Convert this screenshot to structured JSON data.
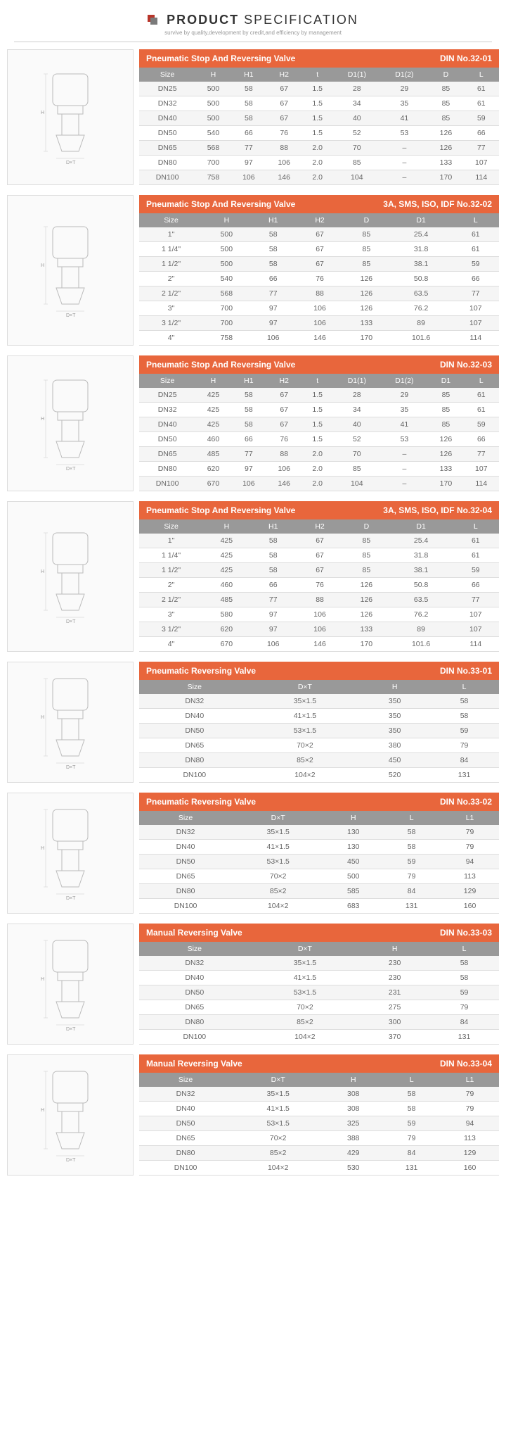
{
  "header": {
    "word1": "PRODUCT",
    "word2": "SPECIFICATION",
    "subtitle": "survive by quality,development by credit,and efficiency by management"
  },
  "colors": {
    "title_bg": "#e8663c",
    "header_row_bg": "#999999",
    "row_odd": "#f5f5f5",
    "row_even": "#ffffff",
    "border": "#dddddd"
  },
  "sections": [
    {
      "title_left": "Pneumatic Stop And Reversing Valve",
      "title_right": "DIN No.32-01",
      "columns": [
        "Size",
        "H",
        "H1",
        "H2",
        "t",
        "D1(1)",
        "D1(2)",
        "D",
        "L"
      ],
      "rows": [
        [
          "DN25",
          "500",
          "58",
          "67",
          "1.5",
          "28",
          "29",
          "85",
          "61"
        ],
        [
          "DN32",
          "500",
          "58",
          "67",
          "1.5",
          "34",
          "35",
          "85",
          "61"
        ],
        [
          "DN40",
          "500",
          "58",
          "67",
          "1.5",
          "40",
          "41",
          "85",
          "59"
        ],
        [
          "DN50",
          "540",
          "66",
          "76",
          "1.5",
          "52",
          "53",
          "126",
          "66"
        ],
        [
          "DN65",
          "568",
          "77",
          "88",
          "2.0",
          "70",
          "–",
          "126",
          "77"
        ],
        [
          "DN80",
          "700",
          "97",
          "106",
          "2.0",
          "85",
          "–",
          "133",
          "107"
        ],
        [
          "DN100",
          "758",
          "106",
          "146",
          "2.0",
          "104",
          "–",
          "170",
          "114"
        ]
      ],
      "diagram_label": "Technical\nDrawing"
    },
    {
      "title_left": "Pneumatic Stop And Reversing Valve",
      "title_right": "3A, SMS, ISO, IDF No.32-02",
      "columns": [
        "Size",
        "H",
        "H1",
        "H2",
        "D",
        "D1",
        "L"
      ],
      "rows": [
        [
          "1\"",
          "500",
          "58",
          "67",
          "85",
          "25.4",
          "61"
        ],
        [
          "1 1/4\"",
          "500",
          "58",
          "67",
          "85",
          "31.8",
          "61"
        ],
        [
          "1 1/2\"",
          "500",
          "58",
          "67",
          "85",
          "38.1",
          "59"
        ],
        [
          "2\"",
          "540",
          "66",
          "76",
          "126",
          "50.8",
          "66"
        ],
        [
          "2 1/2\"",
          "568",
          "77",
          "88",
          "126",
          "63.5",
          "77"
        ],
        [
          "3\"",
          "700",
          "97",
          "106",
          "126",
          "76.2",
          "107"
        ],
        [
          "3 1/2\"",
          "700",
          "97",
          "106",
          "133",
          "89",
          "107"
        ],
        [
          "4\"",
          "758",
          "106",
          "146",
          "170",
          "101.6",
          "114"
        ]
      ],
      "diagram_label": "Technical\nDrawing"
    },
    {
      "title_left": "Pneumatic Stop And Reversing Valve",
      "title_right": "DIN   No.32-03",
      "columns": [
        "Size",
        "H",
        "H1",
        "H2",
        "t",
        "D1(1)",
        "D1(2)",
        "D1",
        "L"
      ],
      "rows": [
        [
          "DN25",
          "425",
          "58",
          "67",
          "1.5",
          "28",
          "29",
          "85",
          "61"
        ],
        [
          "DN32",
          "425",
          "58",
          "67",
          "1.5",
          "34",
          "35",
          "85",
          "61"
        ],
        [
          "DN40",
          "425",
          "58",
          "67",
          "1.5",
          "40",
          "41",
          "85",
          "59"
        ],
        [
          "DN50",
          "460",
          "66",
          "76",
          "1.5",
          "52",
          "53",
          "126",
          "66"
        ],
        [
          "DN65",
          "485",
          "77",
          "88",
          "2.0",
          "70",
          "–",
          "126",
          "77"
        ],
        [
          "DN80",
          "620",
          "97",
          "106",
          "2.0",
          "85",
          "–",
          "133",
          "107"
        ],
        [
          "DN100",
          "670",
          "106",
          "146",
          "2.0",
          "104",
          "–",
          "170",
          "114"
        ]
      ],
      "diagram_label": "Technical\nDrawing"
    },
    {
      "title_left": "Pneumatic Stop And Reversing Valve",
      "title_right": "3A, SMS, ISO, IDF   No.32-04",
      "columns": [
        "Size",
        "H",
        "H1",
        "H2",
        "D",
        "D1",
        "L"
      ],
      "rows": [
        [
          "1\"",
          "425",
          "58",
          "67",
          "85",
          "25.4",
          "61"
        ],
        [
          "1 1/4\"",
          "425",
          "58",
          "67",
          "85",
          "31.8",
          "61"
        ],
        [
          "1 1/2\"",
          "425",
          "58",
          "67",
          "85",
          "38.1",
          "59"
        ],
        [
          "2\"",
          "460",
          "66",
          "76",
          "126",
          "50.8",
          "66"
        ],
        [
          "2 1/2\"",
          "485",
          "77",
          "88",
          "126",
          "63.5",
          "77"
        ],
        [
          "3\"",
          "580",
          "97",
          "106",
          "126",
          "76.2",
          "107"
        ],
        [
          "3 1/2\"",
          "620",
          "97",
          "106",
          "133",
          "89",
          "107"
        ],
        [
          "4\"",
          "670",
          "106",
          "146",
          "170",
          "101.6",
          "114"
        ]
      ],
      "diagram_label": "Technical\nDrawing"
    },
    {
      "title_left": "Pneumatic Reversing Valve",
      "title_right": "DIN   No.33-01",
      "columns": [
        "Size",
        "D×T",
        "H",
        "L"
      ],
      "rows": [
        [
          "DN32",
          "35×1.5",
          "350",
          "58"
        ],
        [
          "DN40",
          "41×1.5",
          "350",
          "58"
        ],
        [
          "DN50",
          "53×1.5",
          "350",
          "59"
        ],
        [
          "DN65",
          "70×2",
          "380",
          "79"
        ],
        [
          "DN80",
          "85×2",
          "450",
          "84"
        ],
        [
          "DN100",
          "104×2",
          "520",
          "131"
        ]
      ],
      "diagram_label": "Technical\nDrawing"
    },
    {
      "title_left": "Pneumatic Reversing Valve",
      "title_right": "DIN   No.33-02",
      "columns": [
        "Size",
        "D×T",
        "H",
        "L",
        "L1"
      ],
      "rows": [
        [
          "DN32",
          "35×1.5",
          "130",
          "58",
          "79"
        ],
        [
          "DN40",
          "41×1.5",
          "130",
          "58",
          "79"
        ],
        [
          "DN50",
          "53×1.5",
          "450",
          "59",
          "94"
        ],
        [
          "DN65",
          "70×2",
          "500",
          "79",
          "113"
        ],
        [
          "DN80",
          "85×2",
          "585",
          "84",
          "129"
        ],
        [
          "DN100",
          "104×2",
          "683",
          "131",
          "160"
        ]
      ],
      "diagram_label": "Technical\nDrawing"
    },
    {
      "title_left": "Manual Reversing Valve",
      "title_right": "DIN   No.33-03",
      "columns": [
        "Size",
        "D×T",
        "H",
        "L"
      ],
      "rows": [
        [
          "DN32",
          "35×1.5",
          "230",
          "58"
        ],
        [
          "DN40",
          "41×1.5",
          "230",
          "58"
        ],
        [
          "DN50",
          "53×1.5",
          "231",
          "59"
        ],
        [
          "DN65",
          "70×2",
          "275",
          "79"
        ],
        [
          "DN80",
          "85×2",
          "300",
          "84"
        ],
        [
          "DN100",
          "104×2",
          "370",
          "131"
        ]
      ],
      "diagram_label": "Technical\nDrawing"
    },
    {
      "title_left": "Manual Reversing Valve",
      "title_right": "DIN   No.33-04",
      "columns": [
        "Size",
        "D×T",
        "H",
        "L",
        "L1"
      ],
      "rows": [
        [
          "DN32",
          "35×1.5",
          "308",
          "58",
          "79"
        ],
        [
          "DN40",
          "41×1.5",
          "308",
          "58",
          "79"
        ],
        [
          "DN50",
          "53×1.5",
          "325",
          "59",
          "94"
        ],
        [
          "DN65",
          "70×2",
          "388",
          "79",
          "113"
        ],
        [
          "DN80",
          "85×2",
          "429",
          "84",
          "129"
        ],
        [
          "DN100",
          "104×2",
          "530",
          "131",
          "160"
        ]
      ],
      "diagram_label": "Technical\nDrawing"
    }
  ]
}
